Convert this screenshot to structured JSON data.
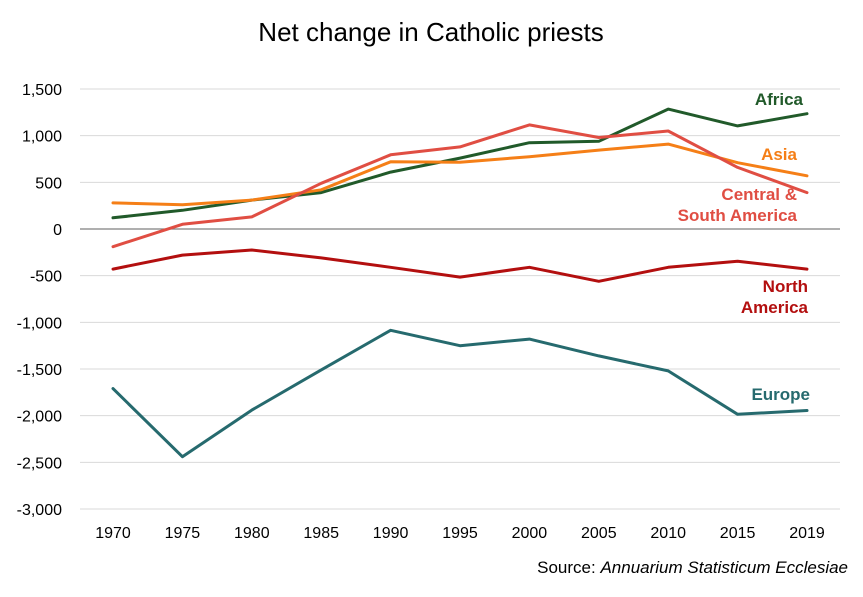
{
  "chart_data": {
    "type": "line",
    "title": "Net change in Catholic priests",
    "xlabel": "",
    "ylabel": "",
    "x": [
      "1970",
      "1975",
      "1980",
      "1985",
      "1990",
      "1995",
      "2000",
      "2005",
      "2010",
      "2015",
      "2019"
    ],
    "y_ticks": [
      "1,500",
      "1,000",
      "500",
      "0",
      "-500",
      "-1,000",
      "-1,500",
      "-2,000",
      "-2,500",
      "-3,000"
    ],
    "y_tick_values": [
      1500,
      1000,
      500,
      0,
      -500,
      -1000,
      -1500,
      -2000,
      -2500,
      -3000
    ],
    "ylim": [
      -3000,
      1500
    ],
    "grid": true,
    "series": [
      {
        "name": "Africa",
        "label_lines": [
          "Africa"
        ],
        "color": "#215a2a",
        "values": [
          120,
          200,
          310,
          390,
          610,
          760,
          925,
          940,
          1285,
          1105,
          1235
        ]
      },
      {
        "name": "Asia",
        "label_lines": [
          "Asia"
        ],
        "color": "#f57f17",
        "values": [
          280,
          260,
          310,
          420,
          720,
          715,
          775,
          845,
          910,
          710,
          570
        ]
      },
      {
        "name": "Central & South America",
        "label_lines": [
          "Central &",
          "South America"
        ],
        "color": "#e04e43",
        "values": [
          -190,
          50,
          130,
          490,
          795,
          880,
          1115,
          980,
          1050,
          660,
          390
        ]
      },
      {
        "name": "North America",
        "label_lines": [
          "North",
          "America"
        ],
        "color": "#b30f0f",
        "values": [
          -430,
          -280,
          -225,
          -310,
          -410,
          -515,
          -410,
          -560,
          -410,
          -345,
          -430
        ]
      },
      {
        "name": "Europe",
        "label_lines": [
          "Europe"
        ],
        "color": "#266a6e",
        "values": [
          -1710,
          -2440,
          -1940,
          -1510,
          -1085,
          -1250,
          -1180,
          -1360,
          -1520,
          -1985,
          -1945
        ]
      }
    ],
    "source_prefix": "Source: ",
    "source_title": "Annuarium Statisticum Ecclesiae"
  }
}
